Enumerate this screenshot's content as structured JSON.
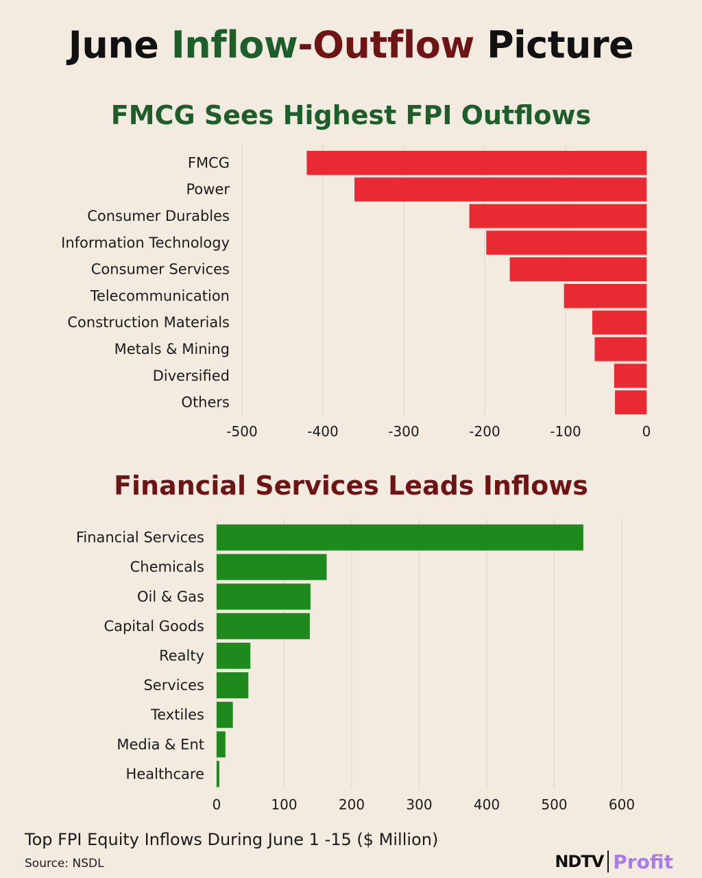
{
  "header": {
    "title_part1": "June ",
    "title_inflow": "Inflow",
    "title_dash": "-",
    "title_outflow": "Outflow",
    "title_part2": " Picture"
  },
  "footer": {
    "note": "Top FPI Equity Inflows During June 1 -15 ($ Million)",
    "source": "Source: NSDL"
  },
  "brand": {
    "ndtv": "NDTV",
    "profit": "Profit"
  },
  "colors": {
    "background": "#f3ebe0",
    "inflow_word": "#1d5e2b",
    "outflow_word": "#6e1414",
    "outflow_bar": "#ea2a32",
    "inflow_bar": "#1e8a1e",
    "outflow_title": "#1d5e2b",
    "inflow_title": "#6e1414",
    "gridline": "#d9d2c7",
    "profit": "#a87cf0"
  },
  "chart_data": [
    {
      "type": "bar",
      "orientation": "horizontal",
      "title": "FMCG Sees Highest FPI Outflows",
      "categories": [
        "FMCG",
        "Power",
        "Consumer Durables",
        "Information Technology",
        "Consumer Services",
        "Telecommunication",
        "Construction Materials",
        "Metals & Mining",
        "Diversified",
        "Others"
      ],
      "values": [
        -420,
        -361,
        -219,
        -198,
        -169,
        -102,
        -67,
        -64,
        -40,
        -39
      ],
      "xlim": [
        -500,
        0
      ],
      "xticks": [
        -500,
        -400,
        -300,
        -200,
        -100,
        0
      ],
      "grid": true
    },
    {
      "type": "bar",
      "orientation": "horizontal",
      "title": "Financial Services Leads Inflows",
      "categories": [
        "Financial Services",
        "Chemicals",
        "Oil & Gas",
        "Capital Goods",
        "Realty",
        "Services",
        "Textiles",
        "Media & Ent",
        "Healthcare"
      ],
      "values": [
        543,
        163,
        139,
        138,
        50,
        47,
        24,
        13,
        4
      ],
      "xlim": [
        0,
        600
      ],
      "xticks": [
        0,
        100,
        200,
        300,
        400,
        500,
        600
      ],
      "grid": true
    }
  ]
}
